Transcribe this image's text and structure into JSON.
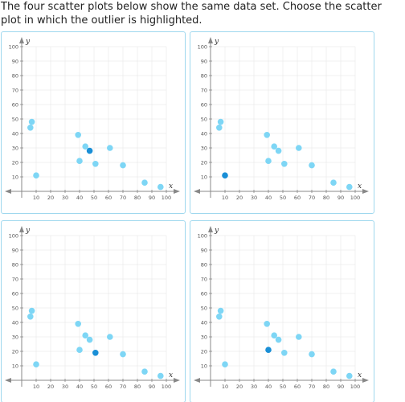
{
  "question": {
    "text": "The four scatter plots below show the same data set. Choose the scatter plot in which the outlier is highlighted."
  },
  "colors": {
    "border": "#9fd8ee",
    "point": "#7ed6f5",
    "highlight": "#1a8fd6",
    "axis": "#888888",
    "grid": "#e6e6e6"
  },
  "chart_data": {
    "type": "scatter",
    "xlabel": "x",
    "ylabel": "y",
    "xlim": [
      0,
      100
    ],
    "ylim": [
      0,
      100
    ],
    "x_ticks": [
      "10",
      "20",
      "30",
      "40",
      "50",
      "60",
      "70",
      "80",
      "90",
      "100"
    ],
    "y_ticks": [
      "10",
      "20",
      "30",
      "40",
      "50",
      "60",
      "70",
      "80",
      "90",
      "100"
    ],
    "points": [
      {
        "x": 6,
        "y": 44
      },
      {
        "x": 7,
        "y": 48
      },
      {
        "x": 10,
        "y": 11
      },
      {
        "x": 39,
        "y": 39
      },
      {
        "x": 40,
        "y": 21
      },
      {
        "x": 44,
        "y": 31
      },
      {
        "x": 47,
        "y": 28
      },
      {
        "x": 51,
        "y": 19
      },
      {
        "x": 61,
        "y": 30
      },
      {
        "x": 70,
        "y": 18
      },
      {
        "x": 85,
        "y": 6
      },
      {
        "x": 96,
        "y": 3
      }
    ]
  },
  "choices": [
    {
      "id": "a",
      "highlight_index": 6
    },
    {
      "id": "b",
      "highlight_index": 2
    },
    {
      "id": "c",
      "highlight_index": 7
    },
    {
      "id": "d",
      "highlight_index": 4
    }
  ]
}
